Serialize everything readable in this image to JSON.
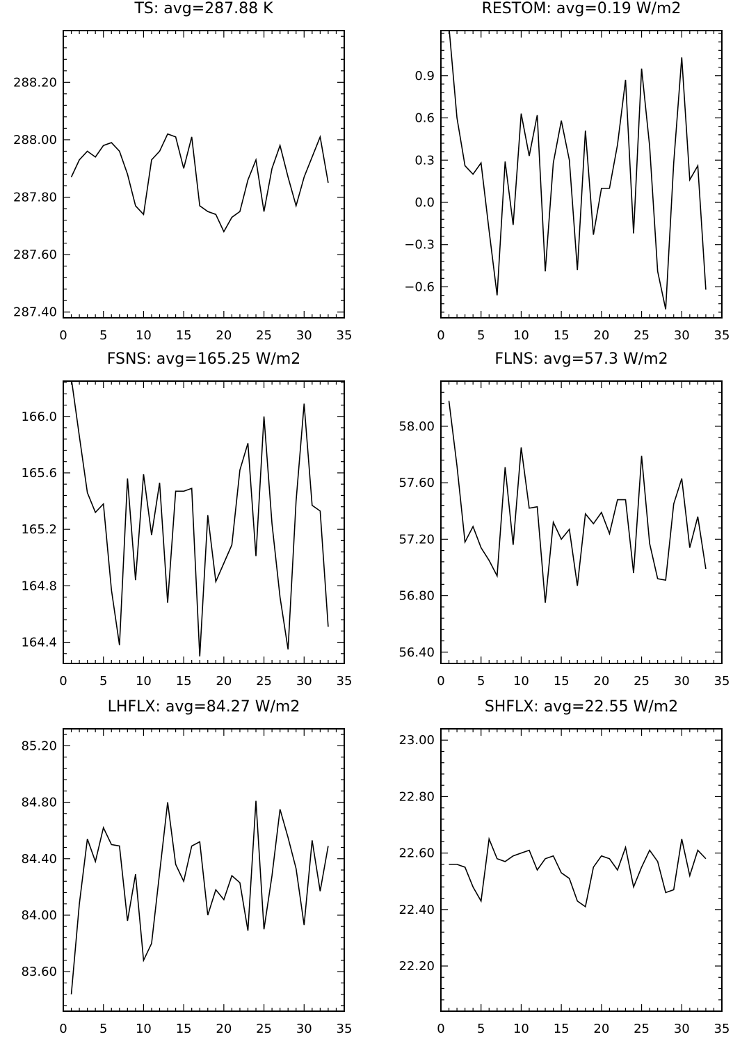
{
  "figure": {
    "background": "#ffffff",
    "line_color": "#000000"
  },
  "chart_data": [
    {
      "type": "line",
      "title": "TS: avg=287.88 K",
      "xlim": [
        0,
        35
      ],
      "ylim": [
        287.38,
        288.38
      ],
      "xticks": [
        0,
        5,
        10,
        15,
        20,
        25,
        30,
        35
      ],
      "xtick_labels": [
        "0",
        "5",
        "10",
        "15",
        "20",
        "25",
        "30",
        "35"
      ],
      "yticks": [
        287.4,
        287.6,
        287.8,
        288.0,
        288.2
      ],
      "ytick_labels": [
        "287.40",
        "287.60",
        "287.80",
        "288.00",
        "288.20"
      ],
      "yminor_step": 0.04,
      "x": [
        1,
        2,
        3,
        4,
        5,
        6,
        7,
        8,
        9,
        10,
        11,
        12,
        13,
        14,
        15,
        16,
        17,
        18,
        19,
        20,
        21,
        22,
        23,
        24,
        25,
        26,
        27,
        28,
        29,
        30,
        31,
        32,
        33
      ],
      "values": [
        287.87,
        287.93,
        287.96,
        287.94,
        287.98,
        287.99,
        287.96,
        287.88,
        287.77,
        287.74,
        287.93,
        287.96,
        288.02,
        288.01,
        287.9,
        288.01,
        287.77,
        287.75,
        287.74,
        287.68,
        287.73,
        287.75,
        287.86,
        287.93,
        287.75,
        287.9,
        287.98,
        287.87,
        287.77,
        287.87,
        287.94,
        288.01,
        287.85
      ]
    },
    {
      "type": "line",
      "title": "RESTOM: avg=0.19 W/m2",
      "xlim": [
        0,
        35
      ],
      "ylim": [
        -0.82,
        1.22
      ],
      "xticks": [
        0,
        5,
        10,
        15,
        20,
        25,
        30,
        35
      ],
      "xtick_labels": [
        "0",
        "5",
        "10",
        "15",
        "20",
        "25",
        "30",
        "35"
      ],
      "yticks": [
        -0.6,
        -0.3,
        0.0,
        0.3,
        0.6,
        0.9
      ],
      "ytick_labels": [
        "−0.6",
        "−0.3",
        "0.0",
        "0.3",
        "0.6",
        "0.9"
      ],
      "yminor_step": 0.06,
      "x": [
        1,
        2,
        3,
        4,
        5,
        6,
        7,
        8,
        9,
        10,
        11,
        12,
        13,
        14,
        15,
        16,
        17,
        18,
        19,
        20,
        21,
        22,
        23,
        24,
        25,
        26,
        27,
        28,
        29,
        30,
        31,
        32,
        33
      ],
      "values": [
        1.25,
        0.6,
        0.26,
        0.2,
        0.28,
        -0.2,
        -0.66,
        0.29,
        -0.16,
        0.63,
        0.33,
        0.62,
        -0.49,
        0.28,
        0.58,
        0.3,
        -0.48,
        0.51,
        -0.23,
        0.1,
        0.1,
        0.41,
        0.87,
        -0.22,
        0.95,
        0.4,
        -0.49,
        -0.76,
        0.28,
        1.03,
        0.16,
        0.26,
        -0.62
      ]
    },
    {
      "type": "line",
      "title": "FSNS: avg=165.25 W/m2",
      "xlim": [
        0,
        35
      ],
      "ylim": [
        164.25,
        166.25
      ],
      "xticks": [
        0,
        5,
        10,
        15,
        20,
        25,
        30,
        35
      ],
      "xtick_labels": [
        "0",
        "5",
        "10",
        "15",
        "20",
        "25",
        "30",
        "35"
      ],
      "yticks": [
        164.4,
        164.8,
        165.2,
        165.6,
        166.0
      ],
      "ytick_labels": [
        "164.4",
        "164.8",
        "165.2",
        "165.6",
        "166.0"
      ],
      "yminor_step": 0.08,
      "x": [
        1,
        2,
        3,
        4,
        5,
        6,
        7,
        8,
        9,
        10,
        11,
        12,
        13,
        14,
        15,
        16,
        17,
        18,
        19,
        20,
        21,
        22,
        23,
        24,
        25,
        26,
        27,
        28,
        29,
        30,
        31,
        32,
        33
      ],
      "values": [
        166.27,
        165.86,
        165.46,
        165.32,
        165.38,
        164.77,
        164.38,
        165.56,
        164.84,
        165.59,
        165.16,
        165.53,
        164.68,
        165.47,
        165.47,
        165.49,
        164.3,
        165.3,
        164.83,
        164.96,
        165.09,
        165.62,
        165.81,
        165.01,
        166.0,
        165.24,
        164.72,
        164.35,
        165.4,
        166.09,
        165.37,
        165.33,
        164.51
      ]
    },
    {
      "type": "line",
      "title": "FLNS: avg=57.3 W/m2",
      "xlim": [
        0,
        35
      ],
      "ylim": [
        56.32,
        58.32
      ],
      "xticks": [
        0,
        5,
        10,
        15,
        20,
        25,
        30,
        35
      ],
      "xtick_labels": [
        "0",
        "5",
        "10",
        "15",
        "20",
        "25",
        "30",
        "35"
      ],
      "yticks": [
        56.4,
        56.8,
        57.2,
        57.6,
        58.0
      ],
      "ytick_labels": [
        "56.40",
        "56.80",
        "57.20",
        "57.60",
        "58.00"
      ],
      "yminor_step": 0.08,
      "x": [
        1,
        2,
        3,
        4,
        5,
        6,
        7,
        8,
        9,
        10,
        11,
        12,
        13,
        14,
        15,
        16,
        17,
        18,
        19,
        20,
        21,
        22,
        23,
        24,
        25,
        26,
        27,
        28,
        29,
        30,
        31,
        32,
        33
      ],
      "values": [
        58.18,
        57.72,
        57.18,
        57.29,
        57.14,
        57.05,
        56.94,
        57.71,
        57.16,
        57.85,
        57.42,
        57.43,
        56.75,
        57.32,
        57.2,
        57.27,
        56.87,
        57.38,
        57.31,
        57.39,
        57.24,
        57.48,
        57.48,
        56.96,
        57.79,
        57.17,
        56.92,
        56.91,
        57.45,
        57.63,
        57.14,
        57.36,
        56.99
      ]
    },
    {
      "type": "line",
      "title": "LHFLX: avg=84.27 W/m2",
      "xlim": [
        0,
        35
      ],
      "ylim": [
        83.32,
        85.32
      ],
      "xticks": [
        0,
        5,
        10,
        15,
        20,
        25,
        30,
        35
      ],
      "xtick_labels": [
        "0",
        "5",
        "10",
        "15",
        "20",
        "25",
        "30",
        "35"
      ],
      "yticks": [
        83.6,
        84.0,
        84.4,
        84.8,
        85.2
      ],
      "ytick_labels": [
        "83.60",
        "84.00",
        "84.40",
        "84.80",
        "85.20"
      ],
      "yminor_step": 0.08,
      "x": [
        1,
        2,
        3,
        4,
        5,
        6,
        7,
        8,
        9,
        10,
        11,
        12,
        13,
        14,
        15,
        16,
        17,
        18,
        19,
        20,
        21,
        22,
        23,
        24,
        25,
        26,
        27,
        28,
        29,
        30,
        31,
        32,
        33
      ],
      "values": [
        83.44,
        84.08,
        84.54,
        84.38,
        84.62,
        84.5,
        84.49,
        83.96,
        84.29,
        83.68,
        83.8,
        84.3,
        84.8,
        84.36,
        84.24,
        84.49,
        84.52,
        84.0,
        84.18,
        84.11,
        84.28,
        84.23,
        83.89,
        84.81,
        83.9,
        84.28,
        84.75,
        84.55,
        84.33,
        83.93,
        84.53,
        84.17,
        84.49
      ]
    },
    {
      "type": "line",
      "title": "SHFLX: avg=22.55 W/m2",
      "xlim": [
        0,
        35
      ],
      "ylim": [
        22.04,
        23.04
      ],
      "xticks": [
        0,
        5,
        10,
        15,
        20,
        25,
        30,
        35
      ],
      "xtick_labels": [
        "0",
        "5",
        "10",
        "15",
        "20",
        "25",
        "30",
        "35"
      ],
      "yticks": [
        22.2,
        22.4,
        22.6,
        22.8,
        23.0
      ],
      "ytick_labels": [
        "22.20",
        "22.40",
        "22.60",
        "22.80",
        "23.00"
      ],
      "yminor_step": 0.04,
      "x": [
        1,
        2,
        3,
        4,
        5,
        6,
        7,
        8,
        9,
        10,
        11,
        12,
        13,
        14,
        15,
        16,
        17,
        18,
        19,
        20,
        21,
        22,
        23,
        24,
        25,
        26,
        27,
        28,
        29,
        30,
        31,
        32,
        33
      ],
      "values": [
        22.56,
        22.56,
        22.55,
        22.48,
        22.43,
        22.65,
        22.58,
        22.57,
        22.59,
        22.6,
        22.61,
        22.54,
        22.58,
        22.59,
        22.53,
        22.51,
        22.43,
        22.41,
        22.55,
        22.59,
        22.58,
        22.54,
        22.62,
        22.48,
        22.55,
        22.61,
        22.57,
        22.46,
        22.47,
        22.65,
        22.52,
        22.61,
        22.58
      ]
    }
  ]
}
